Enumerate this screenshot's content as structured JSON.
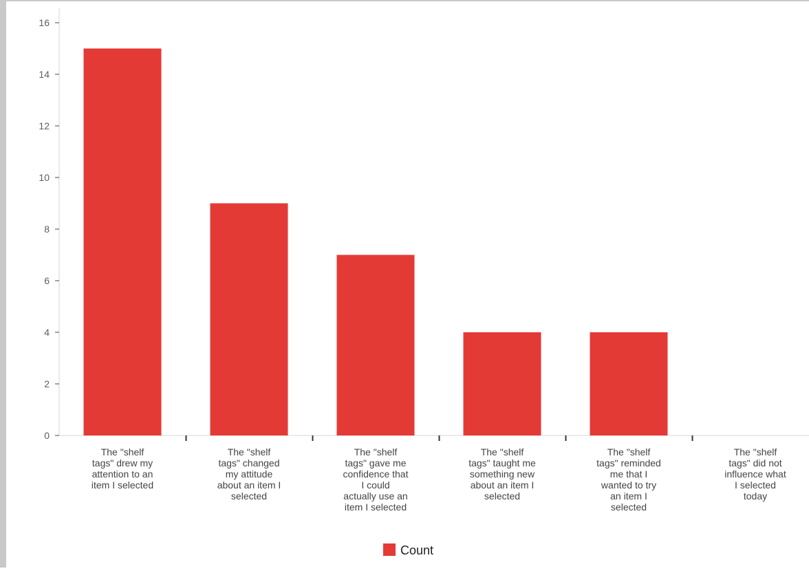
{
  "chart_data": {
    "type": "bar",
    "title": "",
    "xlabel": "",
    "ylabel": "",
    "ylim": [
      0,
      16
    ],
    "yticks": [
      0,
      2,
      4,
      6,
      8,
      10,
      12,
      14,
      16
    ],
    "grid": false,
    "legend_position": "bottom",
    "categories": [
      "The \"shelf tags\" drew my attention to an item I selected",
      "The \"shelf tags\" changed my attitude about an item I selected",
      "The \"shelf tags\" gave me confidence that I could actually use an item I selected",
      "The \"shelf tags\" taught me something new about an item I selected",
      "The \"shelf tags\" reminded me that I wanted to try an item I selected",
      "The \"shelf tags\" did not influence what I selected today"
    ],
    "category_lines": [
      [
        "The \"shelf",
        "tags\" drew my",
        "attention to an",
        "item I selected"
      ],
      [
        "The \"shelf",
        "tags\" changed",
        "my attitude",
        "about an item I",
        "selected"
      ],
      [
        "The \"shelf",
        "tags\" gave me",
        "confidence that",
        "I could",
        "actually use an",
        "item I selected"
      ],
      [
        "The \"shelf",
        "tags\" taught me",
        "something new",
        "about an item I",
        "selected"
      ],
      [
        "The \"shelf",
        "tags\" reminded",
        "me that I",
        "wanted to try",
        "an item I",
        "selected"
      ],
      [
        "The \"shelf",
        "tags\" did not",
        "influence what",
        "I selected",
        "today"
      ]
    ],
    "series": [
      {
        "name": "Count",
        "color": "#e43a36",
        "values": [
          15,
          9,
          7,
          4,
          4,
          0
        ]
      }
    ]
  }
}
